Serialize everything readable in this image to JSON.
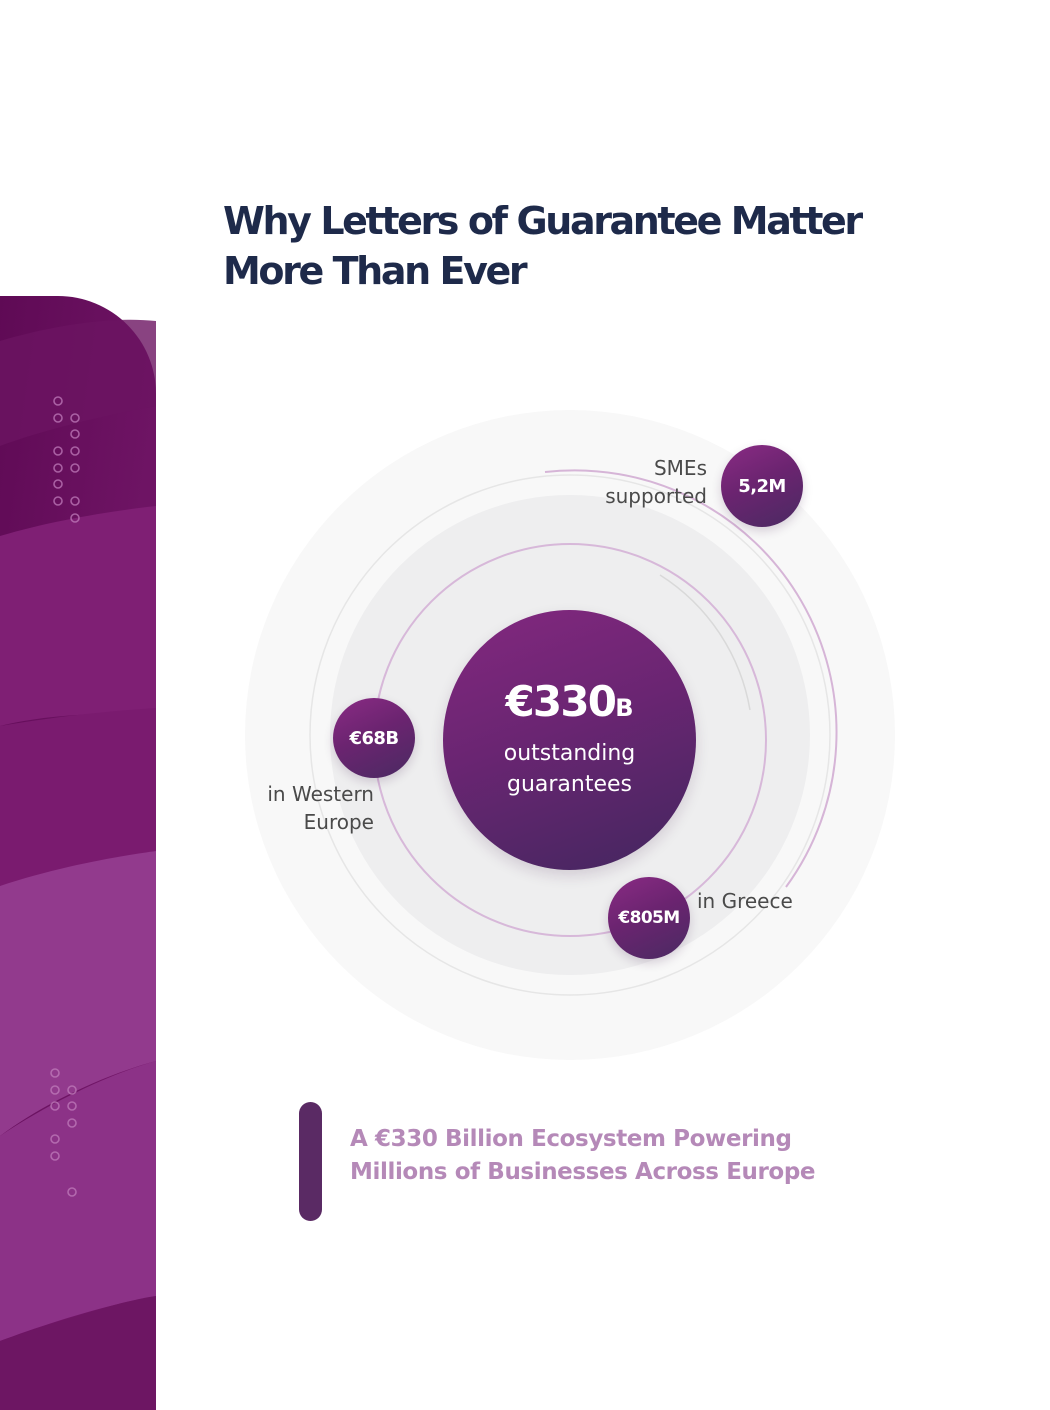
{
  "page": {
    "title_line1": "Why Letters of Guarantee Matter",
    "title_line2": "More Than Ever"
  },
  "diagram": {
    "center": {
      "value": "€330",
      "unit": "B",
      "caption_line1": "outstanding",
      "caption_line2": "guarantees"
    },
    "stats": [
      {
        "value": "5,2M",
        "label_line1": "SMEs",
        "label_line2": "supported"
      },
      {
        "value": "€68B",
        "label_line1": "in Western",
        "label_line2": "Europe"
      },
      {
        "value": "€805M",
        "label_line1": "in Greece"
      }
    ]
  },
  "callout": {
    "line1": "A €330 Billion Ecosystem Powering",
    "line2": "Millions of Businesses Across Europe"
  },
  "colors": {
    "brand_purple": "#6b2470",
    "title_navy": "#1e2a4a",
    "callout_text": "#b589b8",
    "callout_bar": "#5a2a64"
  }
}
